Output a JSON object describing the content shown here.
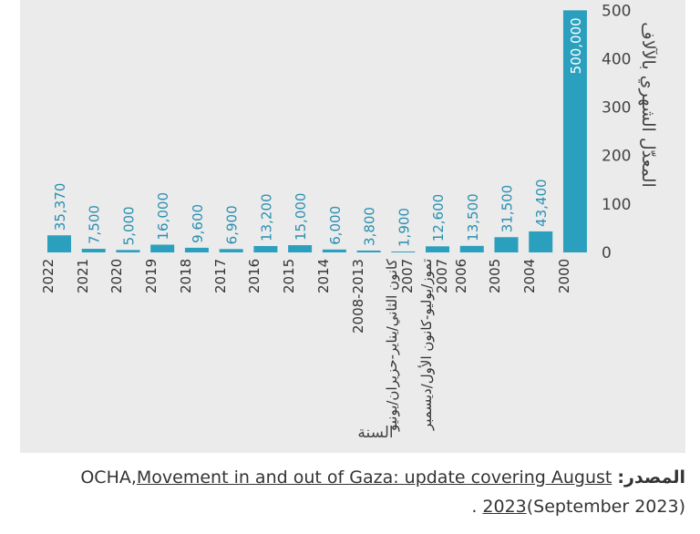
{
  "chart_data": {
    "type": "bar",
    "categories": [
      "2022",
      "2021",
      "2020",
      "2019",
      "2018",
      "2017",
      "2016",
      "2015",
      "2014",
      "2008-2013",
      "كانون الثاني/يناير-حزيران/يونيو 2007",
      "تموز/يوليو-كانون الأول/ديسمبر 2007",
      "2006",
      "2005",
      "2004",
      "2000"
    ],
    "values": [
      35.37,
      7.5,
      5,
      16,
      9.6,
      6.9,
      13.2,
      15,
      6,
      3.8,
      1.9,
      12.6,
      13.5,
      31.5,
      43.4,
      500
    ],
    "value_labels": [
      "35,370",
      "7,500",
      "5,000",
      "16,000",
      "9,600",
      "6,900",
      "13,200",
      "15,000",
      "6,000",
      "3,800",
      "1,900",
      "12,600",
      "13,500",
      "31,500",
      "43,400",
      "500,000"
    ],
    "color": "#2ba0be",
    "ylim": [
      0,
      510
    ],
    "yticks": [
      0,
      100,
      200,
      300,
      400,
      500
    ],
    "y_label": "المعدّل الشهري بالآلاف",
    "x_label": "السنة"
  },
  "source": {
    "label": "المصدر:",
    "org": "OCHA,",
    "link": "Movement in and out of Gaza: update covering August 2023",
    "date": "(September 2023)."
  }
}
